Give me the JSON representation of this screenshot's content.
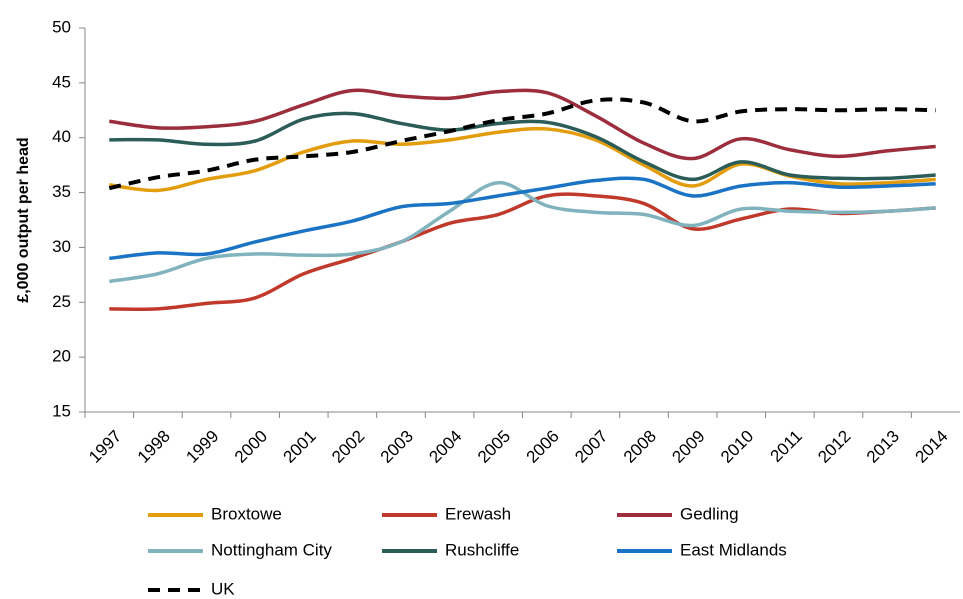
{
  "chart_data": {
    "type": "line",
    "ylabel": "£,000  output per head",
    "categories": [
      "1997",
      "1998",
      "1999",
      "2000",
      "2001",
      "2002",
      "2003",
      "2004",
      "2005",
      "2006",
      "2007",
      "2008",
      "2009",
      "2010",
      "2011",
      "2012",
      "2013",
      "2014"
    ],
    "ylim": [
      15,
      50
    ],
    "yticks": [
      15,
      20,
      25,
      30,
      35,
      40,
      45,
      50
    ],
    "grid": false,
    "smooth": true,
    "legend": "bottom",
    "series": [
      {
        "name": "Broxtowe",
        "color": "#e39c0b",
        "values": [
          35.7,
          35.2,
          36.2,
          37.0,
          38.7,
          39.7,
          39.4,
          39.8,
          40.5,
          40.8,
          39.8,
          37.5,
          35.6,
          37.6,
          36.5,
          35.8,
          35.9,
          36.2
        ]
      },
      {
        "name": "Erewash",
        "color": "#c0392b",
        "values": [
          24.4,
          24.4,
          24.9,
          25.4,
          27.6,
          29.0,
          30.5,
          32.2,
          33.0,
          34.7,
          34.7,
          34.0,
          31.7,
          32.6,
          33.5,
          33.1,
          33.3,
          33.6
        ]
      },
      {
        "name": "Gedling",
        "color": "#9b2d3c",
        "values": [
          41.5,
          40.9,
          41.0,
          41.5,
          43.0,
          44.3,
          43.8,
          43.6,
          44.2,
          44.1,
          42.0,
          39.5,
          38.1,
          39.9,
          38.9,
          38.3,
          38.8,
          39.2
        ]
      },
      {
        "name": "Nottingham City",
        "color": "#80b3bd",
        "values": [
          26.9,
          27.6,
          29.0,
          29.4,
          29.3,
          29.4,
          30.5,
          33.3,
          35.9,
          33.8,
          33.2,
          33.0,
          32.0,
          33.5,
          33.3,
          33.2,
          33.3,
          33.6
        ]
      },
      {
        "name": "Rushcliffe",
        "color": "#2b5c57",
        "values": [
          39.8,
          39.8,
          39.4,
          39.7,
          41.7,
          42.2,
          41.3,
          40.7,
          41.3,
          41.4,
          40.1,
          37.8,
          36.2,
          37.8,
          36.6,
          36.3,
          36.3,
          36.6
        ]
      },
      {
        "name": "East Midlands",
        "color": "#1a73c4",
        "values": [
          29.0,
          29.5,
          29.4,
          30.5,
          31.5,
          32.4,
          33.7,
          34.0,
          34.7,
          35.4,
          36.1,
          36.2,
          34.7,
          35.6,
          35.9,
          35.5,
          35.6,
          35.8
        ]
      },
      {
        "name": "UK",
        "color": "#000000",
        "dashed": true,
        "values": [
          35.4,
          36.4,
          37.0,
          38.0,
          38.3,
          38.7,
          39.7,
          40.6,
          41.6,
          42.2,
          43.4,
          43.2,
          41.5,
          42.4,
          42.6,
          42.5,
          42.6,
          42.5
        ]
      }
    ]
  }
}
